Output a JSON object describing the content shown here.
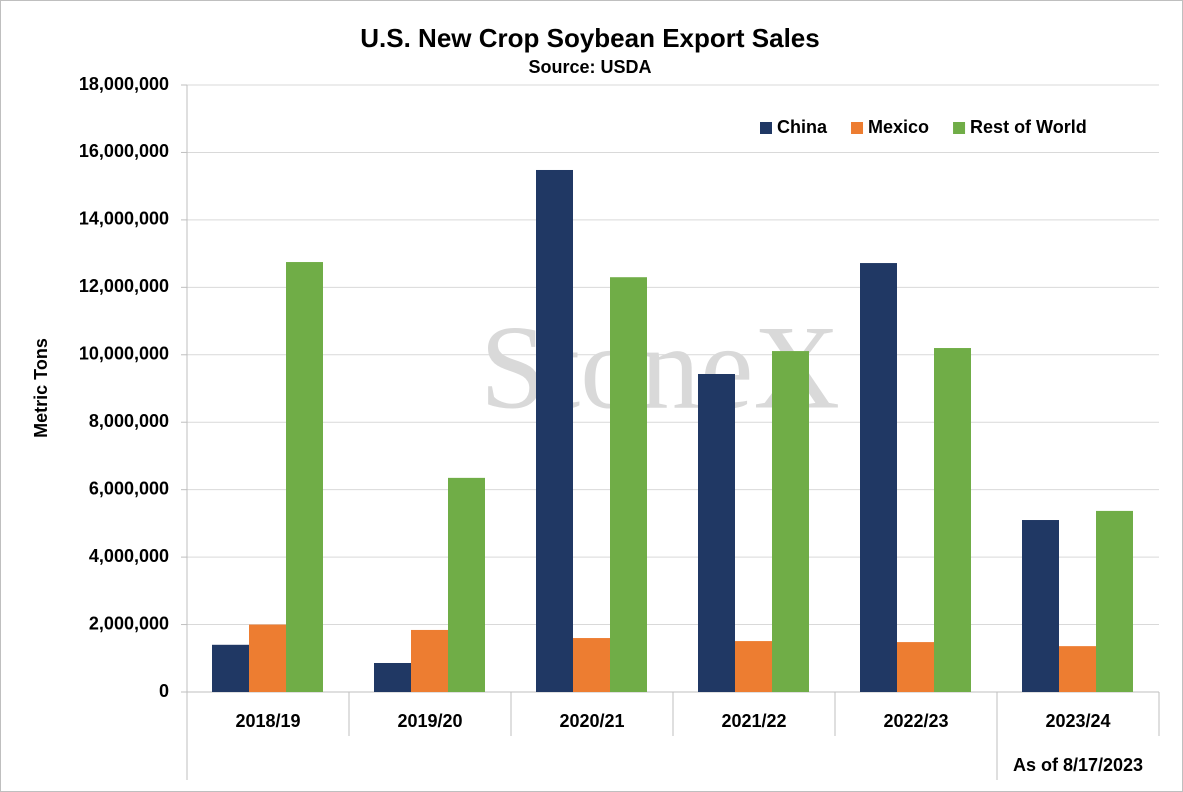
{
  "chart_data": {
    "type": "bar",
    "title": "U.S. New Crop Soybean Export Sales",
    "subtitle": "Source: USDA",
    "y_label": "Metric Tons",
    "annotation": "As of 8/17/2023",
    "watermark": "StoneX",
    "categories": [
      "2018/19",
      "2019/20",
      "2020/21",
      "2021/22",
      "2022/23",
      "2023/24"
    ],
    "series": [
      {
        "name": "China",
        "color": "#203864",
        "values": [
          1400000,
          860000,
          15480000,
          9430000,
          12720000,
          5100000
        ]
      },
      {
        "name": "Mexico",
        "color": "#ed7d31",
        "values": [
          2000000,
          1840000,
          1600000,
          1510000,
          1480000,
          1360000
        ]
      },
      {
        "name": "Rest of World",
        "color": "#70ad47",
        "values": [
          12750000,
          6350000,
          12300000,
          10110000,
          10200000,
          5370000
        ]
      }
    ],
    "ylim": [
      0,
      18000000
    ],
    "yticks": [
      0,
      {
        "value": 2000000,
        "label": "2,000,000"
      },
      {
        "value": 4000000,
        "label": "4,000,000"
      },
      {
        "value": 6000000,
        "label": "6,000,000"
      },
      {
        "value": 8000000,
        "label": "8,000,000"
      },
      {
        "value": 10000000,
        "label": "10,000,000"
      },
      {
        "value": 12000000,
        "label": "12,000,000"
      },
      {
        "value": 14000000,
        "label": "14,000,000"
      },
      {
        "value": 16000000,
        "label": "16,000,000"
      },
      {
        "value": 18000000,
        "label": "18,000,000"
      }
    ],
    "grid": true,
    "legend": "top-right"
  }
}
